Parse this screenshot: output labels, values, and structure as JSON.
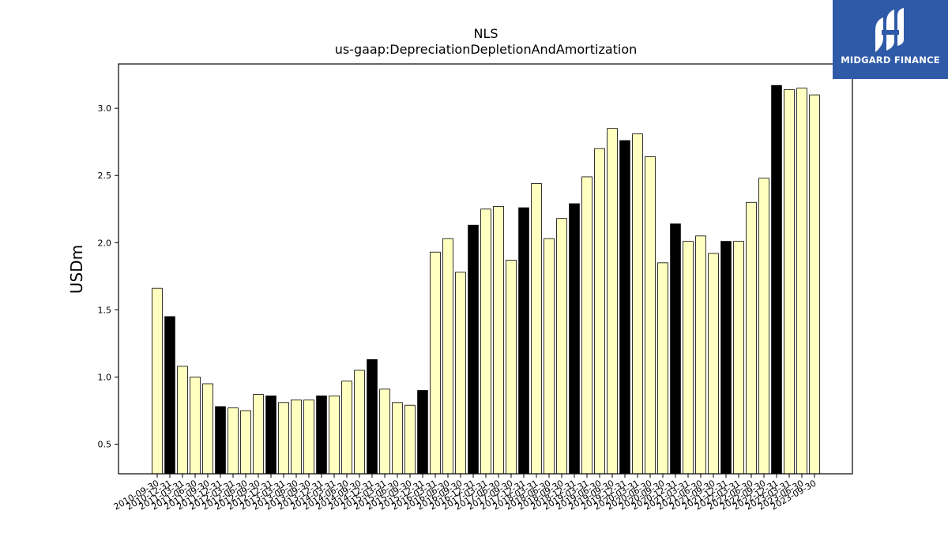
{
  "chart_data": {
    "type": "bar",
    "title": "NLS",
    "subtitle": "us-gaap:DepreciationDepletionAndAmortization",
    "xlabel": "",
    "ylabel": "USDm",
    "ylim": [
      0.28,
      3.33
    ],
    "yticks": [
      0.5,
      1.0,
      1.5,
      2.0,
      2.5,
      3.0
    ],
    "grid": false,
    "colors": {
      "annual": "#000000",
      "quarter": "#ffffc0",
      "edge": "#000000"
    },
    "categories": [
      "2010-09-30",
      "2010-12-31",
      "2011-03-31",
      "2011-06-30",
      "2011-09-30",
      "2011-12-31",
      "2012-03-31",
      "2012-06-30",
      "2012-09-30",
      "2012-12-31",
      "2013-03-31",
      "2013-06-30",
      "2013-09-30",
      "2013-12-31",
      "2014-03-31",
      "2014-06-30",
      "2014-09-30",
      "2014-12-31",
      "2015-03-31",
      "2015-06-30",
      "2015-09-30",
      "2015-12-31",
      "2016-03-31",
      "2016-06-30",
      "2016-09-30",
      "2016-12-31",
      "2017-03-31",
      "2017-06-30",
      "2017-09-30",
      "2017-12-31",
      "2018-03-31",
      "2018-06-30",
      "2018-09-30",
      "2018-12-31",
      "2019-03-31",
      "2019-06-30",
      "2019-09-30",
      "2019-12-31",
      "2020-03-31",
      "2020-06-30",
      "2020-09-30",
      "2020-12-31",
      "2021-03-31",
      "2021-06-30",
      "2021-09-30",
      "2021-12-31",
      "2022-03-31",
      "2022-06-30",
      "2022-09-30",
      "2022-12-31",
      "2023-03-31",
      "2023-06-30",
      "2023-09-30"
    ],
    "values": [
      1.66,
      1.45,
      1.08,
      1.0,
      0.95,
      0.78,
      0.77,
      0.75,
      0.87,
      0.86,
      0.81,
      0.83,
      0.83,
      0.86,
      0.86,
      0.97,
      1.05,
      1.13,
      0.91,
      0.81,
      0.79,
      0.9,
      1.93,
      2.03,
      1.78,
      2.13,
      2.25,
      2.27,
      1.87,
      2.26,
      2.44,
      2.03,
      2.18,
      2.29,
      2.49,
      2.7,
      2.85,
      2.76,
      2.81,
      2.64,
      1.85,
      2.14,
      2.01,
      2.05,
      1.92,
      2.01,
      2.01,
      2.3,
      2.48,
      3.17,
      3.14,
      3.15,
      3.1
    ],
    "annual": [
      false,
      true,
      false,
      false,
      false,
      true,
      false,
      false,
      false,
      true,
      false,
      false,
      false,
      true,
      false,
      false,
      false,
      true,
      false,
      false,
      false,
      true,
      false,
      false,
      false,
      true,
      false,
      false,
      false,
      true,
      false,
      false,
      false,
      true,
      false,
      false,
      false,
      true,
      false,
      false,
      false,
      true,
      false,
      false,
      false,
      true,
      false,
      false,
      false,
      true,
      false,
      false,
      false
    ]
  },
  "logo": {
    "text": "MIDGARD FINANCE",
    "color": "#2f5aa8"
  }
}
